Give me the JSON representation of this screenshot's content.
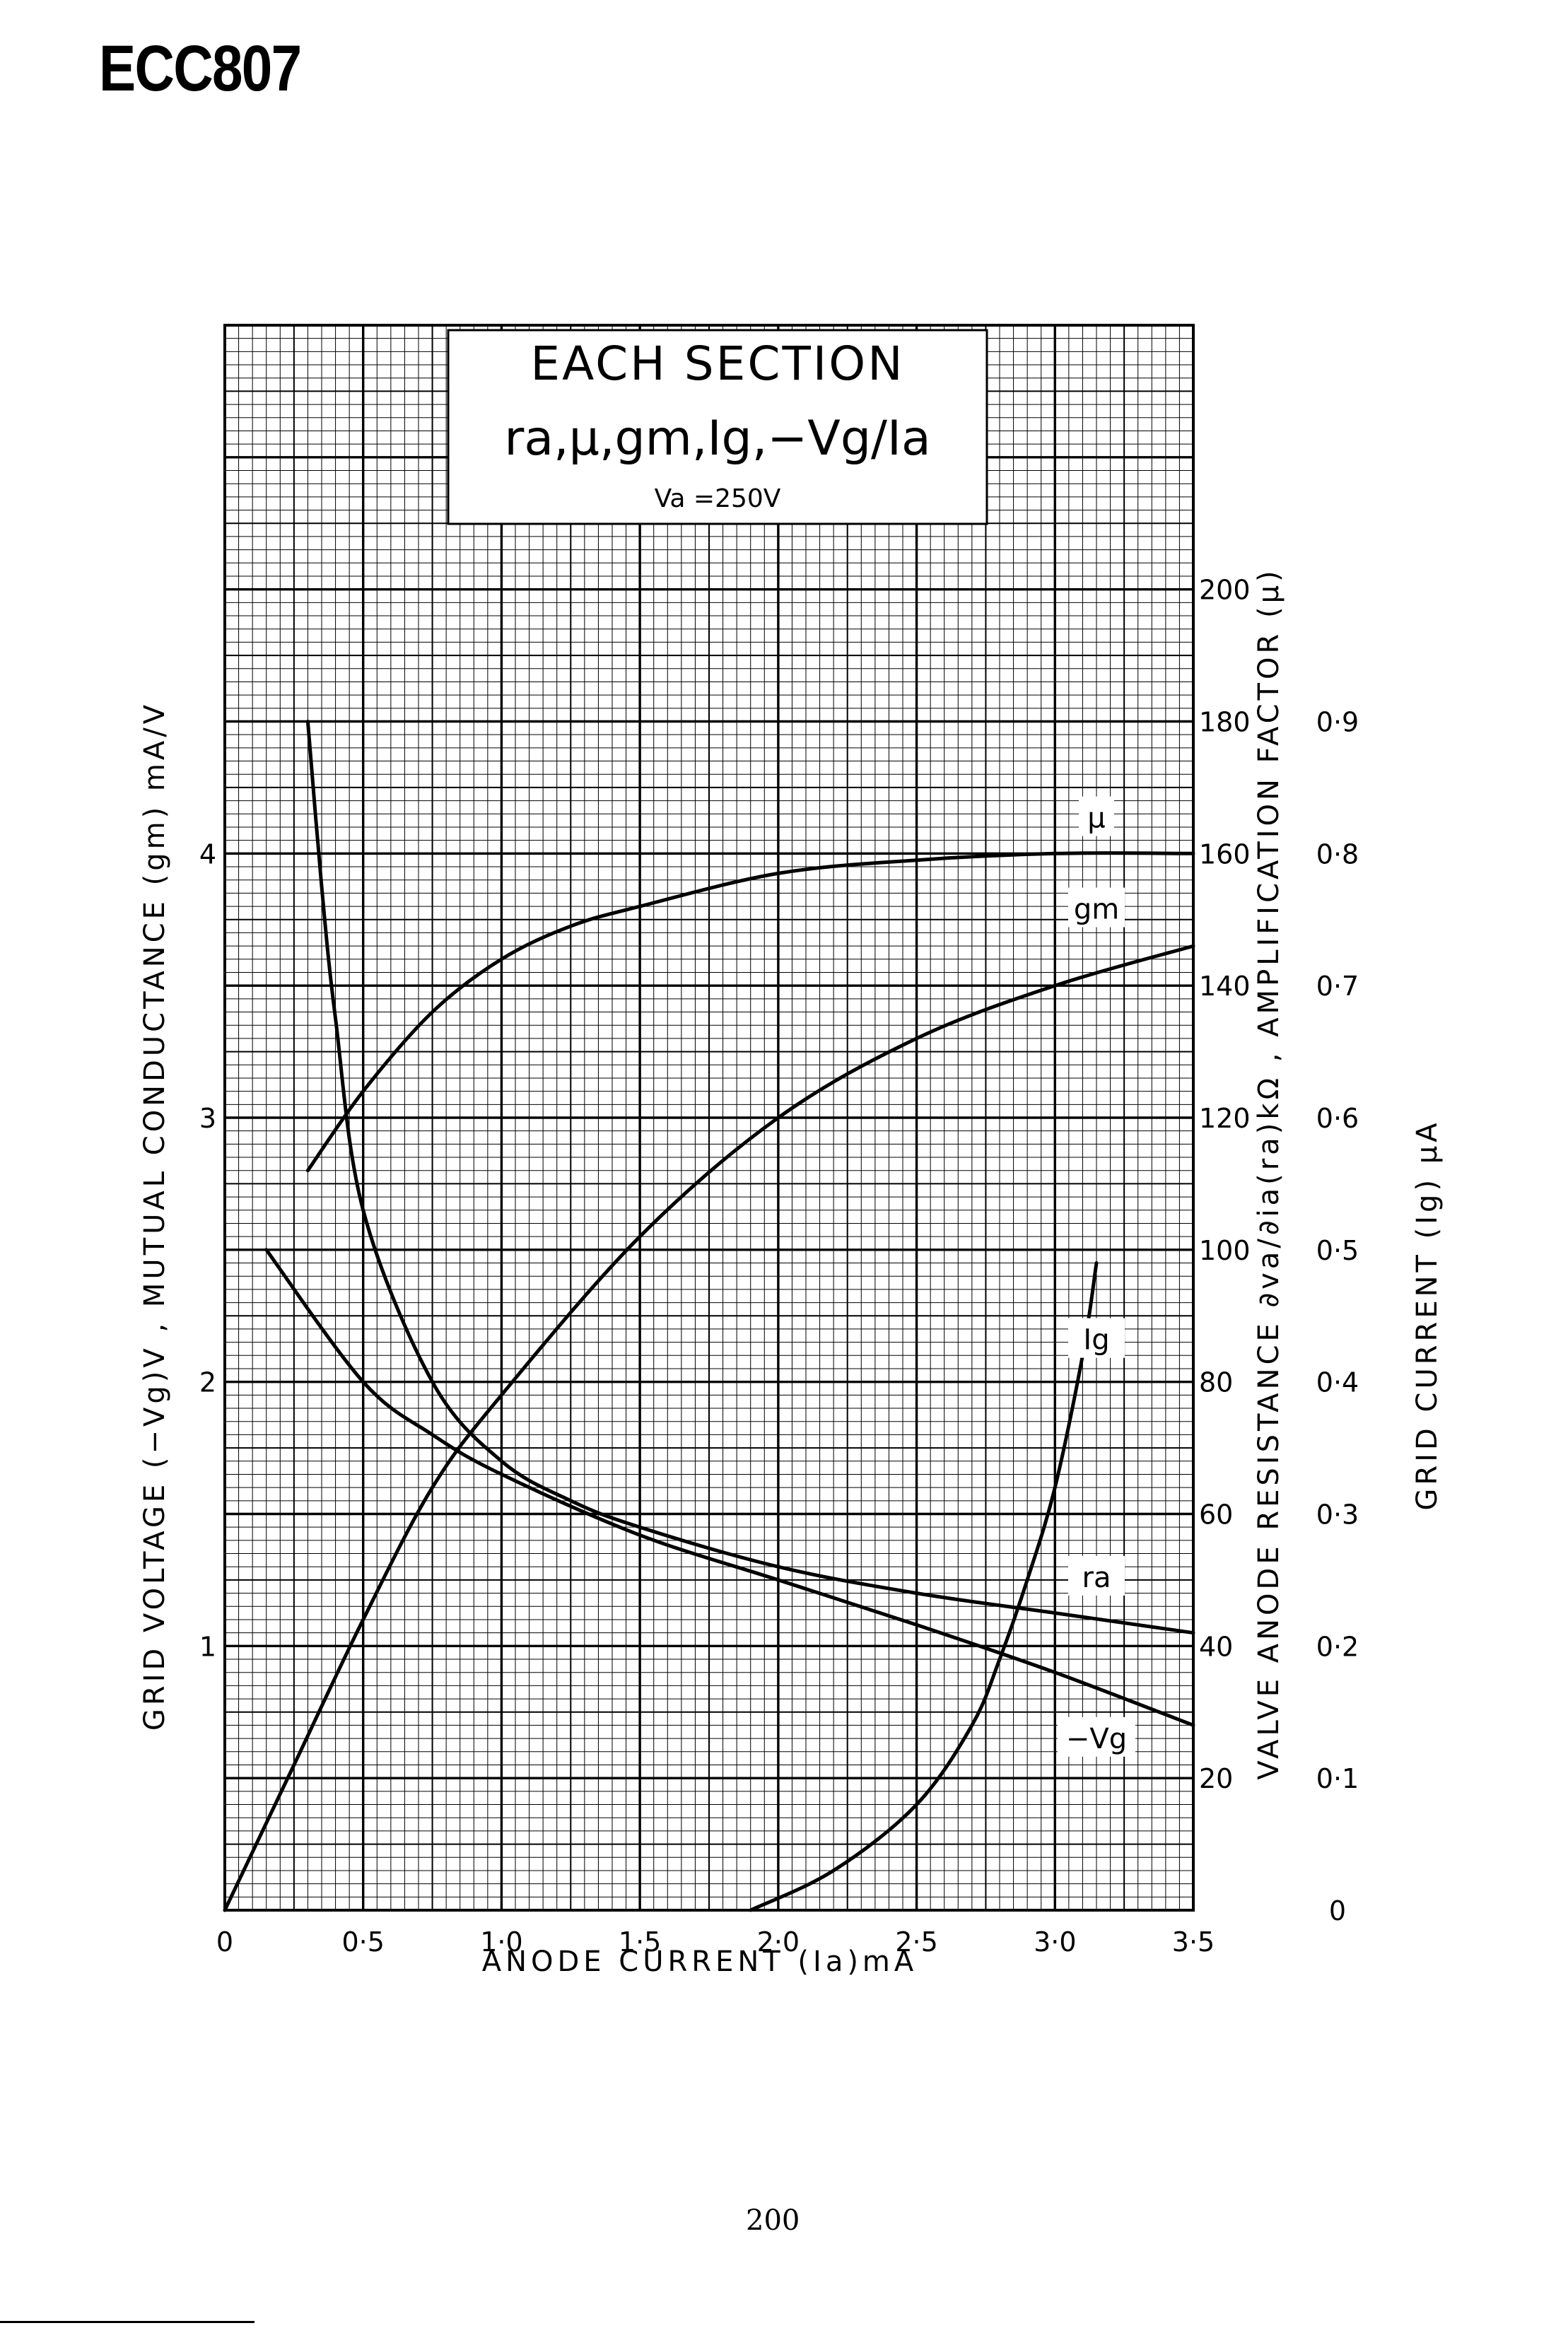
{
  "page": {
    "title": "ECC807",
    "page_number": "200"
  },
  "chart_data": {
    "type": "line",
    "title": "EACH SECTION",
    "subtitle": "ra,μ,gm,Ig,−Vg/Ia",
    "condition": "Va =250V",
    "grid": true,
    "xlabel": "ANODE CURRENT (Ia)mA",
    "xlim": [
      0,
      3.5
    ],
    "x_ticks": [
      "0",
      "0·5",
      "1·0",
      "1·5",
      "2·0",
      "2·5",
      "3·0",
      "3·5"
    ],
    "left_axis": {
      "label": "GRID VOLTAGE (−Vg)V ,   MUTUAL CONDUCTANCE (gm) mA/V",
      "ylim": [
        0,
        6
      ],
      "ticks": [
        "1",
        "2",
        "3",
        "4"
      ]
    },
    "right_axis_1": {
      "label": "VALVE ANODE RESISTANCE ∂va/∂ia(ra)kΩ ,   AMPLIFICATION FACTOR (μ)",
      "ylim": [
        0,
        240
      ],
      "ticks": [
        "20",
        "40",
        "60",
        "80",
        "100",
        "120",
        "140",
        "160",
        "180",
        "200"
      ]
    },
    "right_axis_2": {
      "label": "GRID CURRENT (Ig) μA",
      "ylim": [
        0,
        1.2
      ],
      "ticks": [
        "0",
        "0·1",
        "0·2",
        "0·3",
        "0·4",
        "0·5",
        "0·6",
        "0·7",
        "0·8",
        "0·9"
      ]
    },
    "series": [
      {
        "name": "μ",
        "axis": "right_axis_1",
        "x": [
          0.3,
          0.5,
          0.75,
          1.0,
          1.25,
          1.5,
          2.0,
          2.5,
          3.0,
          3.5
        ],
        "y": [
          112,
          124,
          136,
          144,
          149,
          152,
          157,
          159,
          160,
          160
        ]
      },
      {
        "name": "gm",
        "axis": "left_axis",
        "x": [
          0.0,
          0.25,
          0.5,
          0.75,
          1.0,
          1.5,
          2.0,
          2.5,
          3.0,
          3.5
        ],
        "y": [
          0.0,
          0.55,
          1.1,
          1.6,
          1.95,
          2.55,
          3.0,
          3.3,
          3.5,
          3.65
        ]
      },
      {
        "name": "ra",
        "axis": "right_axis_1",
        "x": [
          0.3,
          0.35,
          0.4,
          0.5,
          0.75,
          1.0,
          1.25,
          1.5,
          2.0,
          2.5,
          3.0,
          3.5
        ],
        "y": [
          180,
          155,
          135,
          106,
          80,
          68,
          62,
          58,
          52,
          48,
          45,
          42
        ]
      },
      {
        "name": "−Vg",
        "axis": "left_axis",
        "x": [
          0.15,
          0.5,
          0.75,
          1.0,
          1.5,
          2.0,
          2.5,
          3.0,
          3.5
        ],
        "y": [
          2.5,
          2.0,
          1.8,
          1.65,
          1.42,
          1.25,
          1.08,
          0.9,
          0.7
        ]
      },
      {
        "name": "Ig",
        "axis": "right_axis_2",
        "x": [
          1.9,
          2.2,
          2.5,
          2.7,
          2.8,
          2.9,
          3.0,
          3.1,
          3.15
        ],
        "y": [
          0.0,
          0.03,
          0.08,
          0.14,
          0.19,
          0.25,
          0.32,
          0.42,
          0.49
        ]
      }
    ],
    "colors": {
      "ink": "#000000",
      "paper": "#ffffff"
    }
  }
}
